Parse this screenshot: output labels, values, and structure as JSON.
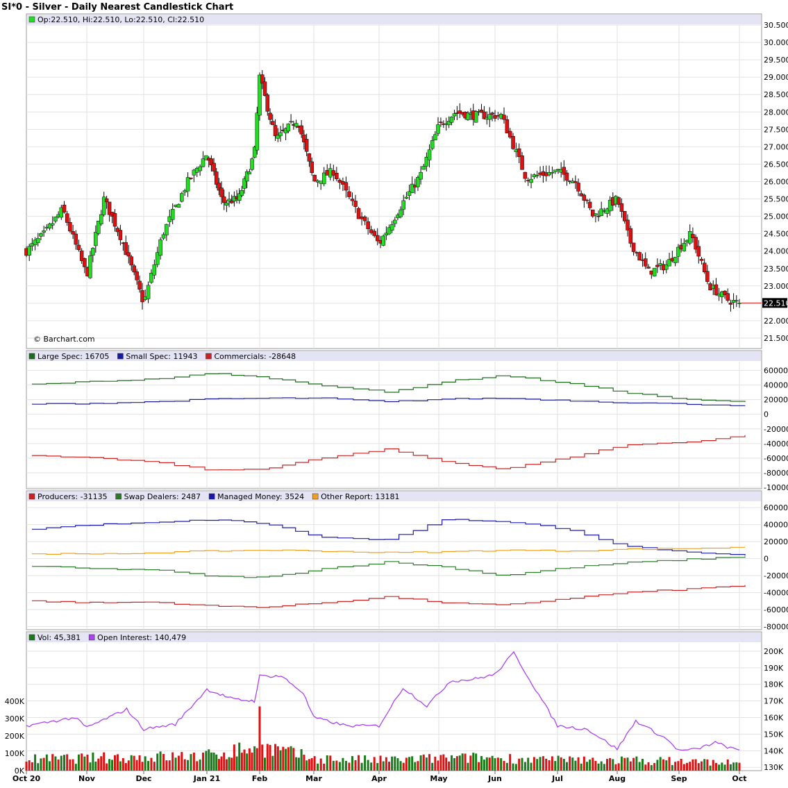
{
  "header": {
    "title": "SI*0 - Silver - Daily Nearest Candlestick Chart",
    "ohlc_text": "Op:22.510, Hi:22.510, Lo:22.510, Cl:22.510",
    "watermark": "© Barchart.com",
    "last_price_label": "22.510"
  },
  "colors": {
    "up": "#22dd22",
    "down": "#dd1111",
    "large_spec": "#1e6b1e",
    "small_spec": "#1a1a9e",
    "commercials": "#cc2222",
    "producers": "#cc2222",
    "swap_dealers": "#2a7a2a",
    "managed_money": "#1a1aaa",
    "other_report": "#f0a020",
    "volume_up": "#1a7a1a",
    "volume_down": "#dd1111",
    "open_interest": "#aa44ee",
    "legend_bg": "#e4e4f4",
    "grid": "#e2e2e2"
  },
  "x_axis": {
    "labels": [
      "Oct 20",
      "Nov",
      "Dec",
      "Jan 21",
      "Feb",
      "Mar",
      "Apr",
      "May",
      "Jun",
      "Jul",
      "Aug",
      "Sep",
      "Oct"
    ]
  },
  "chart_data": [
    {
      "type": "candlestick",
      "title": "SI*0 - Silver - Daily Nearest Candlestick Chart",
      "y_ticks": [
        "21.500",
        "22.000",
        "22.500",
        "23.000",
        "23.500",
        "24.000",
        "24.500",
        "25.000",
        "25.500",
        "26.000",
        "26.500",
        "27.000",
        "27.500",
        "28.000",
        "28.500",
        "29.000",
        "29.500",
        "30.000",
        "30.500"
      ],
      "ylim": [
        21.2,
        30.5
      ],
      "last": {
        "open": 22.51,
        "high": 22.51,
        "low": 22.51,
        "close": 22.51
      },
      "close_path": [
        {
          "month_pos": 0.0,
          "close": 24.0
        },
        {
          "month_pos": 0.3,
          "close": 24.5
        },
        {
          "month_pos": 0.6,
          "close": 25.2
        },
        {
          "month_pos": 1.0,
          "close": 23.3
        },
        {
          "month_pos": 1.3,
          "close": 25.5
        },
        {
          "month_pos": 1.6,
          "close": 24.4
        },
        {
          "month_pos": 2.0,
          "close": 22.5
        },
        {
          "month_pos": 2.3,
          "close": 24.5
        },
        {
          "month_pos": 2.7,
          "close": 26.0
        },
        {
          "month_pos": 3.0,
          "close": 26.8
        },
        {
          "month_pos": 3.3,
          "close": 25.4
        },
        {
          "month_pos": 3.6,
          "close": 25.5
        },
        {
          "month_pos": 3.9,
          "close": 26.8
        },
        {
          "month_pos": 4.0,
          "close": 29.0
        },
        {
          "month_pos": 4.3,
          "close": 27.2
        },
        {
          "month_pos": 4.7,
          "close": 27.8
        },
        {
          "month_pos": 5.0,
          "close": 26.0
        },
        {
          "month_pos": 5.3,
          "close": 26.3
        },
        {
          "month_pos": 5.7,
          "close": 25.0
        },
        {
          "month_pos": 6.0,
          "close": 24.2
        },
        {
          "month_pos": 6.4,
          "close": 25.4
        },
        {
          "month_pos": 6.7,
          "close": 26.2
        },
        {
          "month_pos": 7.0,
          "close": 27.6
        },
        {
          "month_pos": 7.3,
          "close": 28.0
        },
        {
          "month_pos": 7.6,
          "close": 27.9
        },
        {
          "month_pos": 8.0,
          "close": 27.9
        },
        {
          "month_pos": 8.1,
          "close": 27.9
        },
        {
          "month_pos": 8.5,
          "close": 26.1
        },
        {
          "month_pos": 9.0,
          "close": 26.3
        },
        {
          "month_pos": 9.3,
          "close": 26.0
        },
        {
          "month_pos": 9.6,
          "close": 25.0
        },
        {
          "month_pos": 10.0,
          "close": 25.5
        },
        {
          "month_pos": 10.2,
          "close": 24.3
        },
        {
          "month_pos": 10.5,
          "close": 23.4
        },
        {
          "month_pos": 10.8,
          "close": 23.6
        },
        {
          "month_pos": 11.0,
          "close": 24.1
        },
        {
          "month_pos": 11.2,
          "close": 24.5
        },
        {
          "month_pos": 11.5,
          "close": 23.0
        },
        {
          "month_pos": 11.8,
          "close": 22.6
        },
        {
          "month_pos": 12.0,
          "close": 22.5
        }
      ]
    },
    {
      "type": "line",
      "title": "Large Spec / Small Spec / Commercials",
      "series": [
        {
          "name": "Large Spec: 16705",
          "key": "large_spec",
          "values": [
            41000,
            45000,
            48000,
            56000,
            50000,
            40000,
            30000,
            45000,
            53000,
            43000,
            30000,
            20000,
            16705
          ]
        },
        {
          "name": "Small Spec: 11943",
          "key": "small_spec",
          "values": [
            14000,
            15000,
            17000,
            21000,
            22000,
            22000,
            17000,
            21000,
            22000,
            19000,
            16000,
            14000,
            11943
          ]
        },
        {
          "name": "Commercials: -28648",
          "key": "commercials",
          "values": [
            -57000,
            -60000,
            -65000,
            -77000,
            -74000,
            -60000,
            -48000,
            -65000,
            -75000,
            -60000,
            -42000,
            -38000,
            -28648
          ]
        }
      ],
      "y_ticks": [
        "60000",
        "40000",
        "20000",
        "0",
        "-20000",
        "-40000",
        "-60000",
        "-80000",
        "-100000"
      ],
      "ylim": [
        -100000,
        70000
      ]
    },
    {
      "type": "line",
      "title": "Producers / Swap Dealers / Managed Money / Other Report",
      "series": [
        {
          "name": "Producers: -31135",
          "key": "producers",
          "values": [
            -50000,
            -52000,
            -51000,
            -56000,
            -57000,
            -52000,
            -45000,
            -52000,
            -55000,
            -47000,
            -40000,
            -36000,
            -31135
          ]
        },
        {
          "name": "Swap Dealers: 2487",
          "key": "swap_dealers",
          "values": [
            -9000,
            -12000,
            -13000,
            -21000,
            -22000,
            -12000,
            -4000,
            -10000,
            -20000,
            -11000,
            -5000,
            -1000,
            2487
          ]
        },
        {
          "name": "Managed Money: 3524",
          "key": "managed_money",
          "values": [
            35000,
            40000,
            42000,
            46000,
            41000,
            25000,
            22000,
            46000,
            44000,
            35000,
            15000,
            8000,
            3524
          ]
        },
        {
          "name": "Other Report: 13181",
          "key": "other_report",
          "values": [
            6000,
            5000,
            7000,
            9000,
            10000,
            9000,
            7000,
            8000,
            10000,
            9000,
            11000,
            12000,
            13181
          ]
        }
      ],
      "y_ticks": [
        "60000",
        "40000",
        "20000",
        "0",
        "-20000",
        "-40000",
        "-60000",
        "-80000"
      ],
      "ylim": [
        -82000,
        65000
      ]
    },
    {
      "type": "bar+line",
      "title": "Vol / Open Interest",
      "volume": {
        "name": "Vol: 45,381",
        "last": 45381,
        "y_ticks": [
          "0K",
          "100K",
          "200K",
          "300K",
          "400K"
        ],
        "month_avg": [
          65000,
          72000,
          78000,
          85000,
          140000,
          70000,
          60000,
          70000,
          75000,
          60000,
          60000,
          55000,
          45381
        ],
        "peak": {
          "month_pos": 4.0,
          "value": 370000
        }
      },
      "open_interest": {
        "name": "Open Interest: 140,479",
        "last": 140479,
        "y_ticks": [
          "130K",
          "140K",
          "150K",
          "160K",
          "170K",
          "180K",
          "190K",
          "200K"
        ],
        "ylim": [
          128000,
          205000
        ],
        "path": [
          {
            "month_pos": 0.0,
            "value": 155000
          },
          {
            "month_pos": 0.8,
            "value": 160000
          },
          {
            "month_pos": 1.0,
            "value": 154000
          },
          {
            "month_pos": 1.7,
            "value": 165000
          },
          {
            "month_pos": 2.0,
            "value": 153000
          },
          {
            "month_pos": 2.5,
            "value": 156000
          },
          {
            "month_pos": 3.0,
            "value": 177000
          },
          {
            "month_pos": 3.5,
            "value": 171000
          },
          {
            "month_pos": 3.9,
            "value": 170000
          },
          {
            "month_pos": 4.0,
            "value": 185000
          },
          {
            "month_pos": 4.4,
            "value": 185000
          },
          {
            "month_pos": 4.8,
            "value": 175000
          },
          {
            "month_pos": 5.0,
            "value": 160000
          },
          {
            "month_pos": 5.5,
            "value": 155000
          },
          {
            "month_pos": 6.0,
            "value": 155000
          },
          {
            "month_pos": 6.4,
            "value": 178000
          },
          {
            "month_pos": 6.8,
            "value": 167000
          },
          {
            "month_pos": 7.2,
            "value": 182000
          },
          {
            "month_pos": 7.6,
            "value": 183000
          },
          {
            "month_pos": 8.0,
            "value": 186000
          },
          {
            "month_pos": 8.3,
            "value": 199000
          },
          {
            "month_pos": 8.6,
            "value": 180000
          },
          {
            "month_pos": 9.0,
            "value": 155000
          },
          {
            "month_pos": 9.5,
            "value": 153000
          },
          {
            "month_pos": 10.0,
            "value": 141000
          },
          {
            "month_pos": 10.3,
            "value": 158000
          },
          {
            "month_pos": 10.8,
            "value": 147000
          },
          {
            "month_pos": 11.0,
            "value": 140000
          },
          {
            "month_pos": 11.3,
            "value": 141000
          },
          {
            "month_pos": 11.6,
            "value": 145000
          },
          {
            "month_pos": 11.9,
            "value": 141000
          },
          {
            "month_pos": 12.0,
            "value": 140479
          }
        ]
      }
    }
  ]
}
